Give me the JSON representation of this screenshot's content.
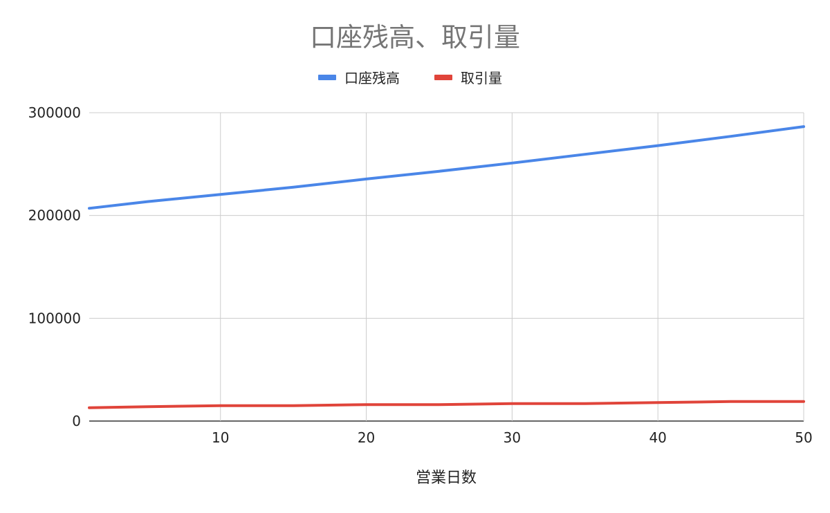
{
  "chart_data": {
    "type": "line",
    "title": "口座残高、取引量",
    "xlabel": "営業日数",
    "ylabel": "",
    "xlim": [
      1,
      50
    ],
    "ylim": [
      0,
      300000
    ],
    "xticks": [
      10,
      20,
      30,
      40,
      50
    ],
    "yticks": [
      0,
      100000,
      200000,
      300000
    ],
    "grid": true,
    "legend_position": "top",
    "series": [
      {
        "name": "口座残高",
        "color": "#4a86e8",
        "x": [
          1,
          5,
          10,
          15,
          20,
          25,
          30,
          35,
          40,
          45,
          50
        ],
        "values": [
          207000,
          213500,
          220500,
          227500,
          235500,
          243000,
          251000,
          259500,
          268000,
          277000,
          286500
        ]
      },
      {
        "name": "取引量",
        "color": "#e0443a",
        "x": [
          1,
          5,
          10,
          15,
          20,
          25,
          30,
          35,
          40,
          45,
          50
        ],
        "values": [
          13000,
          14000,
          15000,
          15000,
          16000,
          16000,
          17000,
          17000,
          18000,
          19000,
          19000
        ]
      }
    ]
  }
}
